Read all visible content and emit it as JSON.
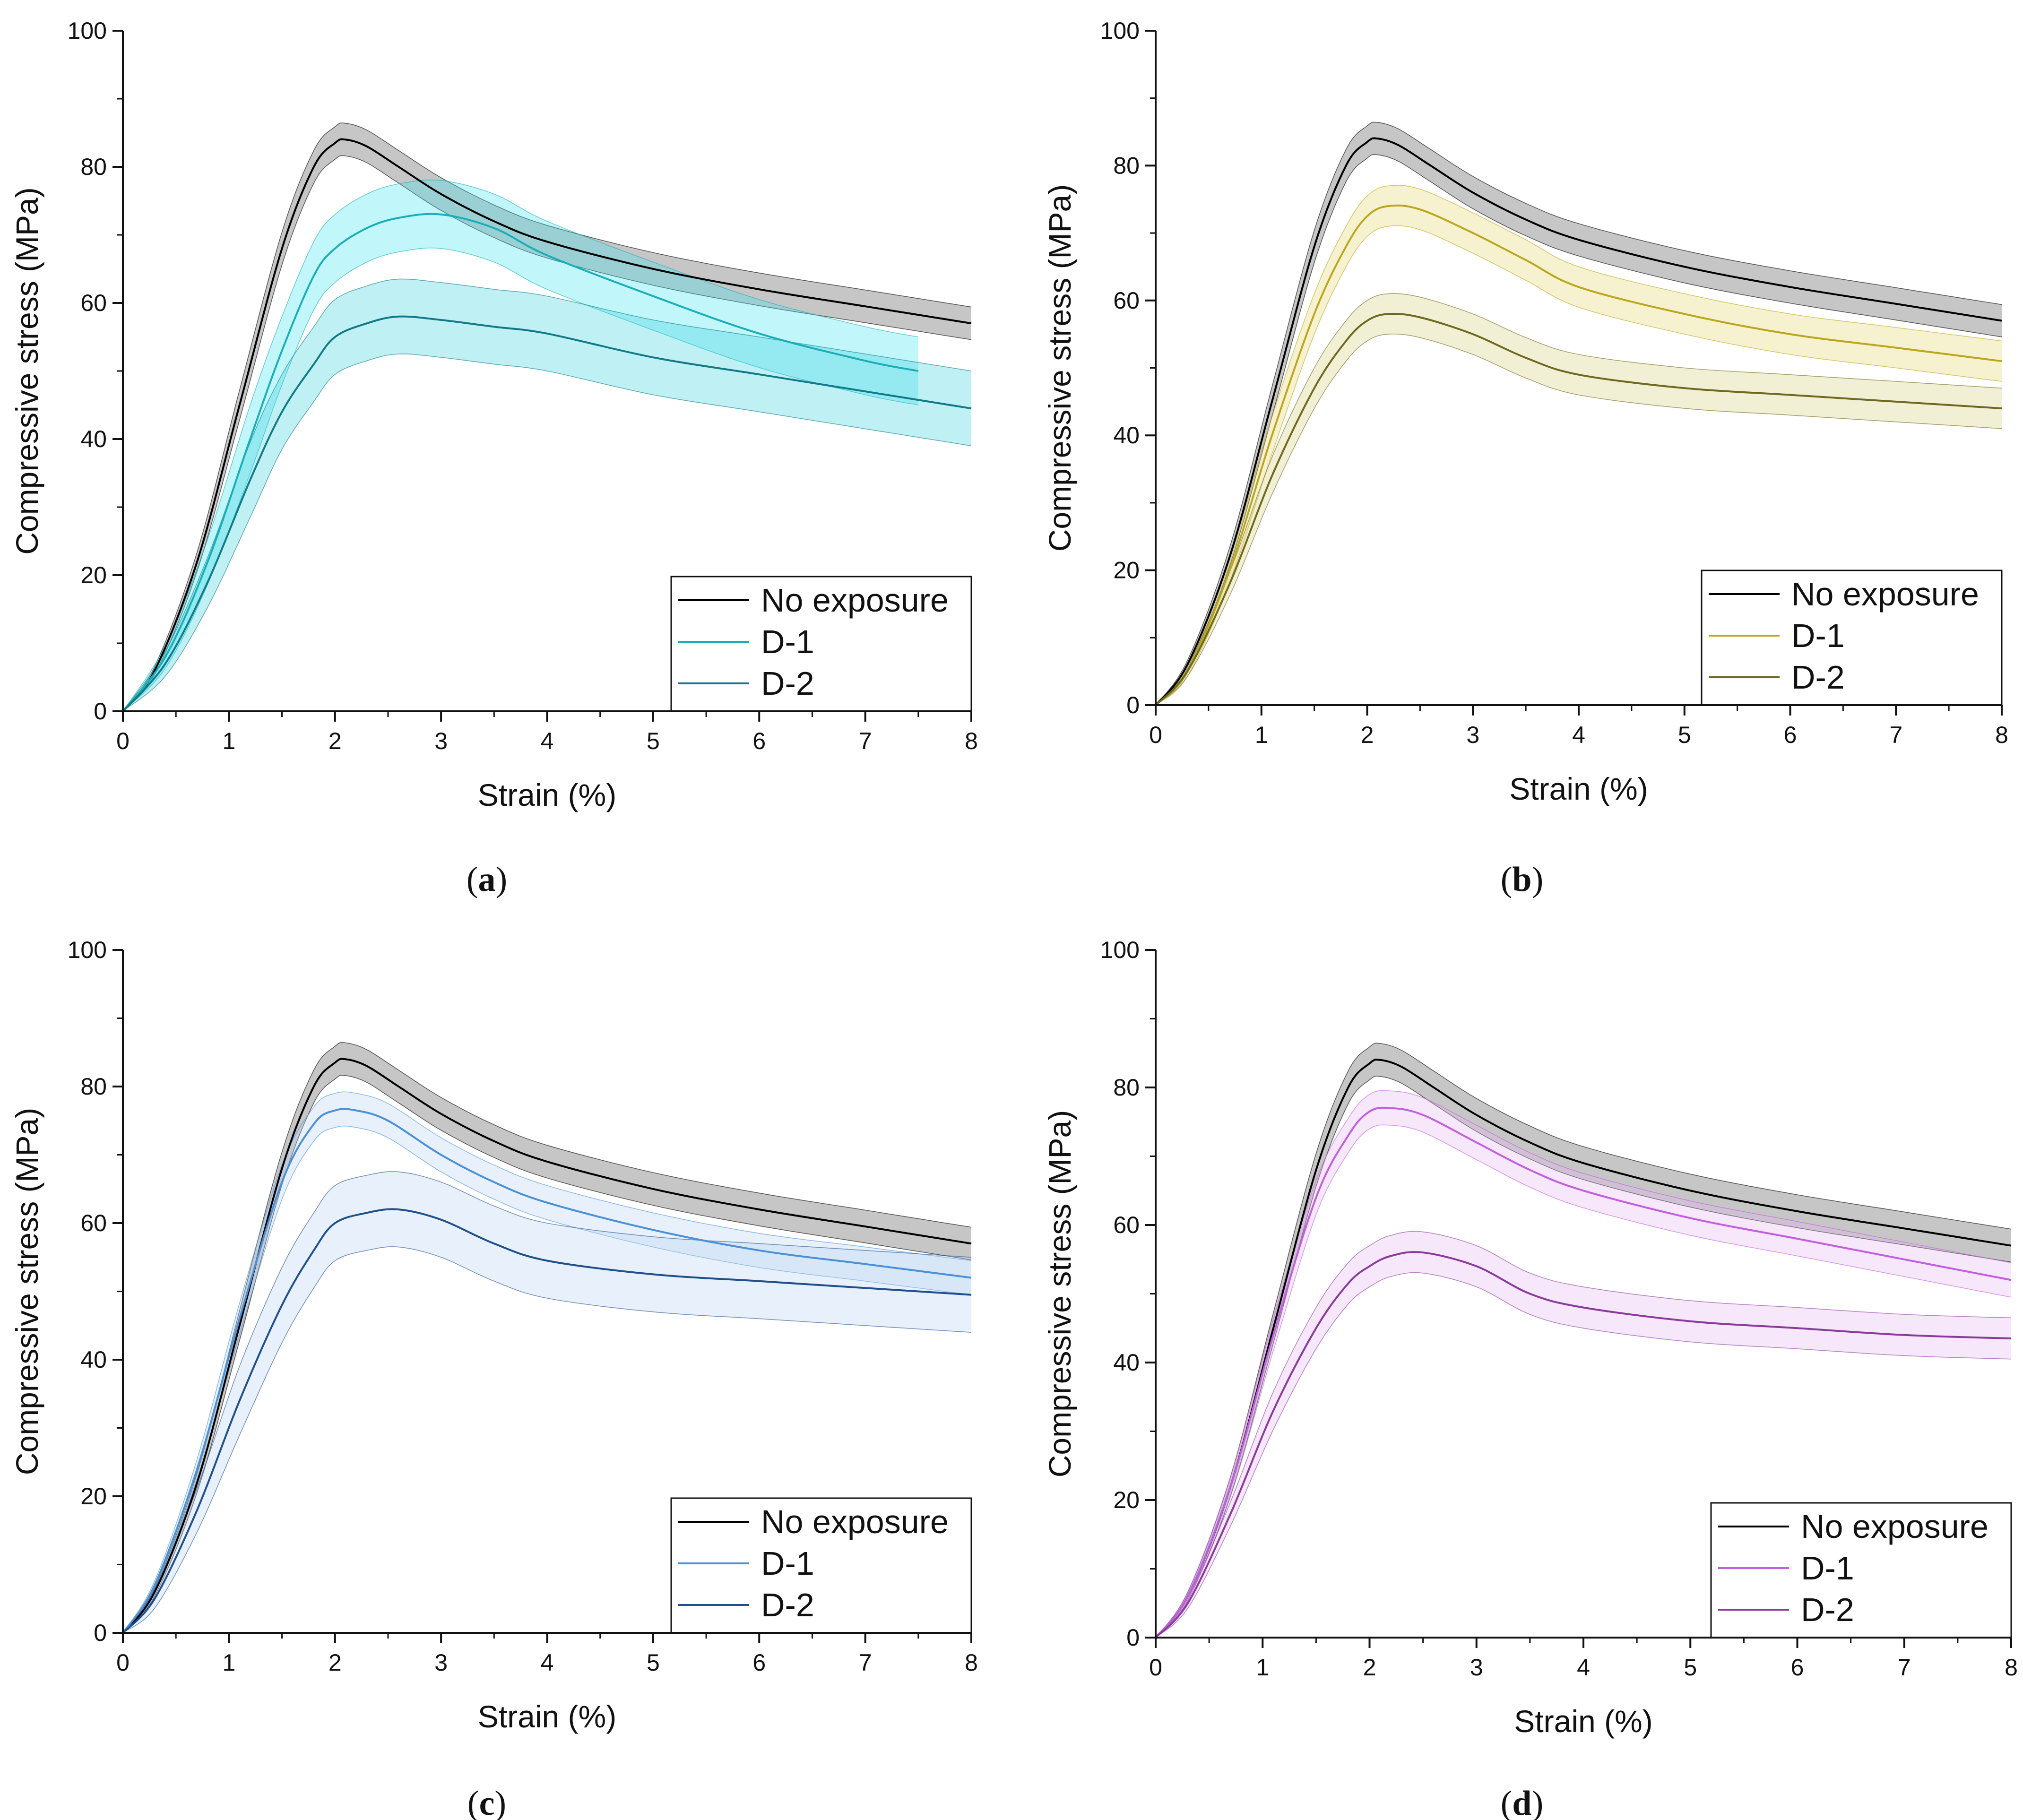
{
  "chart_data": [
    {
      "type": "line",
      "caption": "a",
      "xlabel": "Strain (%)",
      "ylabel": "Compressive stress (MPa)",
      "xlim": [
        0,
        8
      ],
      "ylim": [
        0,
        100
      ],
      "x_ticks": [
        "0",
        "1",
        "2",
        "3",
        "4",
        "5",
        "6",
        "7",
        "8"
      ],
      "y_ticks": [
        "0",
        "20",
        "40",
        "60",
        "80",
        "100"
      ],
      "legend_position": "bottom-right",
      "series": [
        {
          "name": "No exposure",
          "color": "#000000",
          "band_color": "#808080",
          "band_width": 2.4,
          "x": [
            0,
            0.3,
            0.7,
            1.1,
            1.5,
            1.8,
            2.0,
            2.1,
            2.3,
            2.6,
            3.0,
            3.5,
            4.0,
            5.0,
            6.0,
            7.0,
            8.0
          ],
          "y": [
            0,
            6,
            22,
            45,
            68,
            80,
            83.5,
            84,
            83,
            80,
            76,
            72,
            69,
            65,
            62,
            59.5,
            57
          ]
        },
        {
          "name": "D-1",
          "color": "#1aaeb8",
          "band_color": "#3ee6ee",
          "band_width": 5,
          "x": [
            0,
            0.4,
            0.8,
            1.2,
            1.5,
            1.8,
            2.0,
            2.3,
            2.6,
            3.0,
            3.5,
            4.0,
            5.0,
            6.0,
            7.0,
            7.5
          ],
          "y": [
            0,
            8,
            22,
            40,
            53,
            64,
            68,
            71,
            72.5,
            73,
            71,
            67,
            61,
            55.5,
            51.5,
            50
          ]
        },
        {
          "name": "D-2",
          "color": "#117a86",
          "band_color": "#35d0dc",
          "band_width": 5.5,
          "x": [
            0,
            0.4,
            0.8,
            1.2,
            1.5,
            1.8,
            2.0,
            2.3,
            2.6,
            3.0,
            3.5,
            4.0,
            5.0,
            6.0,
            7.0,
            8.0
          ],
          "y": [
            0,
            7,
            19,
            34,
            44,
            51,
            55,
            57,
            58,
            57.5,
            56.5,
            55.5,
            52,
            49.5,
            47,
            44.5
          ]
        }
      ]
    },
    {
      "type": "line",
      "caption": "b",
      "xlabel": "Strain (%)",
      "ylabel": "Compressive stress (MPa)",
      "xlim": [
        0,
        8
      ],
      "ylim": [
        0,
        100
      ],
      "x_ticks": [
        "0",
        "1",
        "2",
        "3",
        "4",
        "5",
        "6",
        "7",
        "8"
      ],
      "y_ticks": [
        "0",
        "20",
        "40",
        "60",
        "80",
        "100"
      ],
      "legend_position": "bottom-right",
      "series": [
        {
          "name": "No exposure",
          "color": "#000000",
          "band_color": "#808080",
          "band_width": 2.4,
          "x": [
            0,
            0.3,
            0.7,
            1.1,
            1.5,
            1.8,
            2.0,
            2.1,
            2.3,
            2.6,
            3.0,
            3.5,
            4.0,
            5.0,
            6.0,
            7.0,
            8.0
          ],
          "y": [
            0,
            6,
            22,
            45,
            68,
            80,
            83.5,
            84,
            83,
            80,
            76,
            72,
            69,
            65,
            62,
            59.5,
            57
          ]
        },
        {
          "name": "D-1",
          "color": "#bba71e",
          "band_color": "#e2d466",
          "band_width": 3,
          "x": [
            0,
            0.3,
            0.7,
            1.1,
            1.5,
            1.8,
            2.0,
            2.2,
            2.5,
            3.0,
            3.5,
            4.0,
            5.0,
            6.0,
            7.0,
            8.0
          ],
          "y": [
            0,
            5,
            20,
            40,
            58,
            68,
            72.5,
            74,
            73.5,
            70,
            66,
            62,
            58,
            55,
            53,
            51
          ]
        },
        {
          "name": "D-2",
          "color": "#6e6820",
          "band_color": "#d8cf78",
          "band_width": 3,
          "x": [
            0,
            0.3,
            0.7,
            1.1,
            1.5,
            1.8,
            2.0,
            2.2,
            2.5,
            3.0,
            3.5,
            4.0,
            5.0,
            6.0,
            7.0,
            8.0
          ],
          "y": [
            0,
            5,
            18,
            34,
            47,
            54,
            57,
            58,
            57.5,
            55,
            51.5,
            49,
            47,
            46,
            45,
            44
          ]
        }
      ]
    },
    {
      "type": "line",
      "caption": "c",
      "xlabel": "Strain (%)",
      "ylabel": "Compressive stress (MPa)",
      "xlim": [
        0,
        8
      ],
      "ylim": [
        0,
        100
      ],
      "x_ticks": [
        "0",
        "1",
        "2",
        "3",
        "4",
        "5",
        "6",
        "7",
        "8"
      ],
      "y_ticks": [
        "0",
        "20",
        "40",
        "60",
        "80",
        "100"
      ],
      "legend_position": "bottom-right",
      "series": [
        {
          "name": "No exposure",
          "color": "#000000",
          "band_color": "#808080",
          "band_width": 2.4,
          "x": [
            0,
            0.3,
            0.7,
            1.1,
            1.5,
            1.8,
            2.0,
            2.1,
            2.3,
            2.6,
            3.0,
            3.5,
            4.0,
            5.0,
            6.0,
            7.0,
            8.0
          ],
          "y": [
            0,
            6,
            22,
            45,
            68,
            80,
            83.5,
            84,
            83,
            80,
            76,
            72,
            69,
            65,
            62,
            59.5,
            57
          ]
        },
        {
          "name": "D-1",
          "color": "#4a90d8",
          "band_color": "#b8d4f2",
          "band_width": 2.5,
          "x": [
            0,
            0.3,
            0.7,
            1.1,
            1.5,
            1.8,
            2.0,
            2.2,
            2.5,
            3.0,
            3.5,
            4.0,
            5.0,
            6.0,
            7.0,
            8.0
          ],
          "y": [
            0,
            7,
            24,
            46,
            66,
            74.5,
            76.5,
            76.5,
            75,
            70,
            66,
            63,
            59,
            56,
            54,
            52
          ]
        },
        {
          "name": "D-2",
          "color": "#1f4f8c",
          "band_color": "#b8d4f2",
          "band_width": 5.5,
          "x": [
            0,
            0.3,
            0.7,
            1.1,
            1.5,
            1.8,
            2.0,
            2.3,
            2.6,
            3.0,
            3.5,
            4.0,
            5.0,
            6.0,
            7.0,
            8.0
          ],
          "y": [
            0,
            5,
            18,
            34,
            48,
            56,
            60,
            61.5,
            62,
            60.5,
            57,
            54.5,
            52.5,
            51.5,
            50.5,
            49.5
          ]
        }
      ]
    },
    {
      "type": "line",
      "caption": "d",
      "xlabel": "Strain (%)",
      "ylabel": "Compressive stress (MPa)",
      "xlim": [
        0,
        8
      ],
      "ylim": [
        0,
        100
      ],
      "x_ticks": [
        "0",
        "1",
        "2",
        "3",
        "4",
        "5",
        "6",
        "7",
        "8"
      ],
      "y_ticks": [
        "0",
        "20",
        "40",
        "60",
        "80",
        "100"
      ],
      "legend_position": "bottom-right",
      "series": [
        {
          "name": "No exposure",
          "color": "#000000",
          "band_color": "#808080",
          "band_width": 2.4,
          "x": [
            0,
            0.3,
            0.7,
            1.1,
            1.5,
            1.8,
            2.0,
            2.1,
            2.3,
            2.6,
            3.0,
            3.5,
            4.0,
            5.0,
            6.0,
            7.0,
            8.0
          ],
          "y": [
            0,
            6,
            22,
            45,
            68,
            80,
            83.5,
            84,
            83,
            80,
            76,
            72,
            69,
            65,
            62,
            59.5,
            57
          ]
        },
        {
          "name": "D-1",
          "color": "#c45ee0",
          "band_color": "#e4b4f2",
          "band_width": 2.5,
          "x": [
            0,
            0.3,
            0.7,
            1.1,
            1.5,
            1.8,
            2.0,
            2.2,
            2.5,
            3.0,
            3.5,
            4.0,
            5.0,
            6.0,
            7.0,
            8.0
          ],
          "y": [
            0,
            6,
            22,
            44,
            64,
            73,
            76.5,
            77,
            76,
            72,
            68,
            65,
            61,
            58,
            55,
            52
          ]
        },
        {
          "name": "D-2",
          "color": "#8a3a9c",
          "band_color": "#e4b4f2",
          "band_width": 3,
          "x": [
            0,
            0.3,
            0.7,
            1.1,
            1.5,
            1.8,
            2.0,
            2.2,
            2.5,
            3.0,
            3.5,
            4.0,
            5.0,
            6.0,
            7.0,
            8.0
          ],
          "y": [
            0,
            5,
            18,
            33,
            45,
            51.5,
            54,
            55.5,
            56,
            54,
            50,
            48,
            46,
            45,
            44,
            43.5
          ]
        }
      ]
    }
  ]
}
